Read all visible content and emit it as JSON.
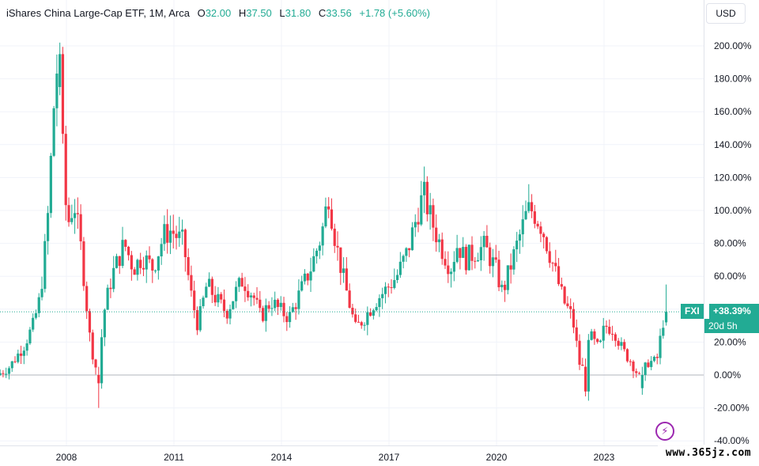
{
  "legend": {
    "title": "iShares China Large-Cap ETF, 1M, Arca",
    "o_label": "O",
    "o_value": "32.00",
    "h_label": "H",
    "h_value": "37.50",
    "l_label": "L",
    "l_value": "31.80",
    "c_label": "C",
    "c_value": "33.56",
    "change": "+1.78 (+5.60%)"
  },
  "currency": "USD",
  "badge": {
    "symbol": "FXI",
    "value": "+38.39%",
    "countdown": "20d 5h"
  },
  "watermark": "www.365jz.com",
  "icons": {
    "flash": "lightning-icon"
  },
  "colors": {
    "up": "#22ab94",
    "down": "#f23645",
    "grid": "#f0f3fa",
    "zero_line": "#b2b5be",
    "badge": "#22ab94",
    "flash": "#9c27b0"
  },
  "chart_data": {
    "type": "candlestick",
    "title": "iShares China Large-Cap ETF, 1M, Arca",
    "ylabel": "",
    "xlabel": "",
    "y_unit": "%",
    "ylim": [
      -40,
      210
    ],
    "y_ticks": [
      200,
      180,
      160,
      140,
      120,
      100,
      80,
      60,
      40,
      20,
      0,
      -20,
      -40
    ],
    "y_tick_labels": [
      "200.00%",
      "180.00%",
      "160.00%",
      "140.00%",
      "120.00%",
      "100.00%",
      "80.00%",
      "60.00%",
      "40.00%",
      "20.00%",
      "0.00%",
      "-20.00%",
      "-40.00%"
    ],
    "x_ticks": [
      "2008",
      "2011",
      "2014",
      "2017",
      "2020",
      "2023"
    ],
    "x_tick_positions": [
      2008.0,
      2011.0,
      2014.0,
      2017.0,
      2020.0,
      2023.0
    ],
    "xlim": [
      2006.15,
      2024.85
    ],
    "last_value": 38.39,
    "anchors": [
      [
        2006.15,
        0
      ],
      [
        2006.5,
        5
      ],
      [
        2006.9,
        18
      ],
      [
        2007.15,
        30
      ],
      [
        2007.35,
        47
      ],
      [
        2007.55,
        90
      ],
      [
        2007.7,
        150
      ],
      [
        2007.8,
        190
      ],
      [
        2007.95,
        150
      ],
      [
        2008.1,
        90
      ],
      [
        2008.3,
        105
      ],
      [
        2008.5,
        75
      ],
      [
        2008.75,
        20
      ],
      [
        2008.95,
        0
      ],
      [
        2009.15,
        40
      ],
      [
        2009.35,
        60
      ],
      [
        2009.7,
        80
      ],
      [
        2009.95,
        65
      ],
      [
        2010.2,
        72
      ],
      [
        2010.5,
        65
      ],
      [
        2010.8,
        85
      ],
      [
        2011.0,
        88
      ],
      [
        2011.35,
        80
      ],
      [
        2011.55,
        50
      ],
      [
        2011.75,
        30
      ],
      [
        2012.0,
        55
      ],
      [
        2012.3,
        45
      ],
      [
        2012.55,
        38
      ],
      [
        2012.8,
        50
      ],
      [
        2013.0,
        58
      ],
      [
        2013.3,
        48
      ],
      [
        2013.5,
        35
      ],
      [
        2013.8,
        45
      ],
      [
        2014.0,
        40
      ],
      [
        2014.3,
        35
      ],
      [
        2014.6,
        50
      ],
      [
        2014.9,
        65
      ],
      [
        2015.2,
        85
      ],
      [
        2015.4,
        110
      ],
      [
        2015.6,
        80
      ],
      [
        2015.85,
        55
      ],
      [
        2016.15,
        28
      ],
      [
        2016.4,
        35
      ],
      [
        2016.7,
        45
      ],
      [
        2017.0,
        52
      ],
      [
        2017.3,
        60
      ],
      [
        2017.6,
        75
      ],
      [
        2017.9,
        100
      ],
      [
        2018.05,
        110
      ],
      [
        2018.25,
        95
      ],
      [
        2018.5,
        80
      ],
      [
        2018.8,
        65
      ],
      [
        2019.0,
        80
      ],
      [
        2019.2,
        70
      ],
      [
        2019.5,
        75
      ],
      [
        2019.75,
        78
      ],
      [
        2020.05,
        65
      ],
      [
        2020.25,
        50
      ],
      [
        2020.6,
        75
      ],
      [
        2020.95,
        100
      ],
      [
        2021.1,
        100
      ],
      [
        2021.35,
        90
      ],
      [
        2021.65,
        68
      ],
      [
        2021.95,
        45
      ],
      [
        2022.2,
        35
      ],
      [
        2022.45,
        0
      ],
      [
        2022.65,
        25
      ],
      [
        2022.95,
        15
      ],
      [
        2023.1,
        30
      ],
      [
        2023.35,
        28
      ],
      [
        2023.6,
        15
      ],
      [
        2023.85,
        8
      ],
      [
        2024.1,
        -3
      ],
      [
        2024.3,
        8
      ],
      [
        2024.55,
        8
      ],
      [
        2024.75,
        35
      ],
      [
        2024.8,
        38.39
      ]
    ],
    "notable_candles": [
      {
        "x": 2007.82,
        "high": 202,
        "low": 170,
        "open": 175,
        "close": 195
      },
      {
        "x": 2008.9,
        "high": 5,
        "low": -20,
        "open": 0,
        "close": -5
      },
      {
        "x": 2022.5,
        "high": 10,
        "low": -13,
        "open": 5,
        "close": -10
      },
      {
        "x": 2024.1,
        "high": 5,
        "low": -12,
        "open": -8,
        "close": 0
      },
      {
        "x": 2024.78,
        "high": 55,
        "low": 30,
        "open": 32,
        "close": 38.39
      }
    ]
  }
}
